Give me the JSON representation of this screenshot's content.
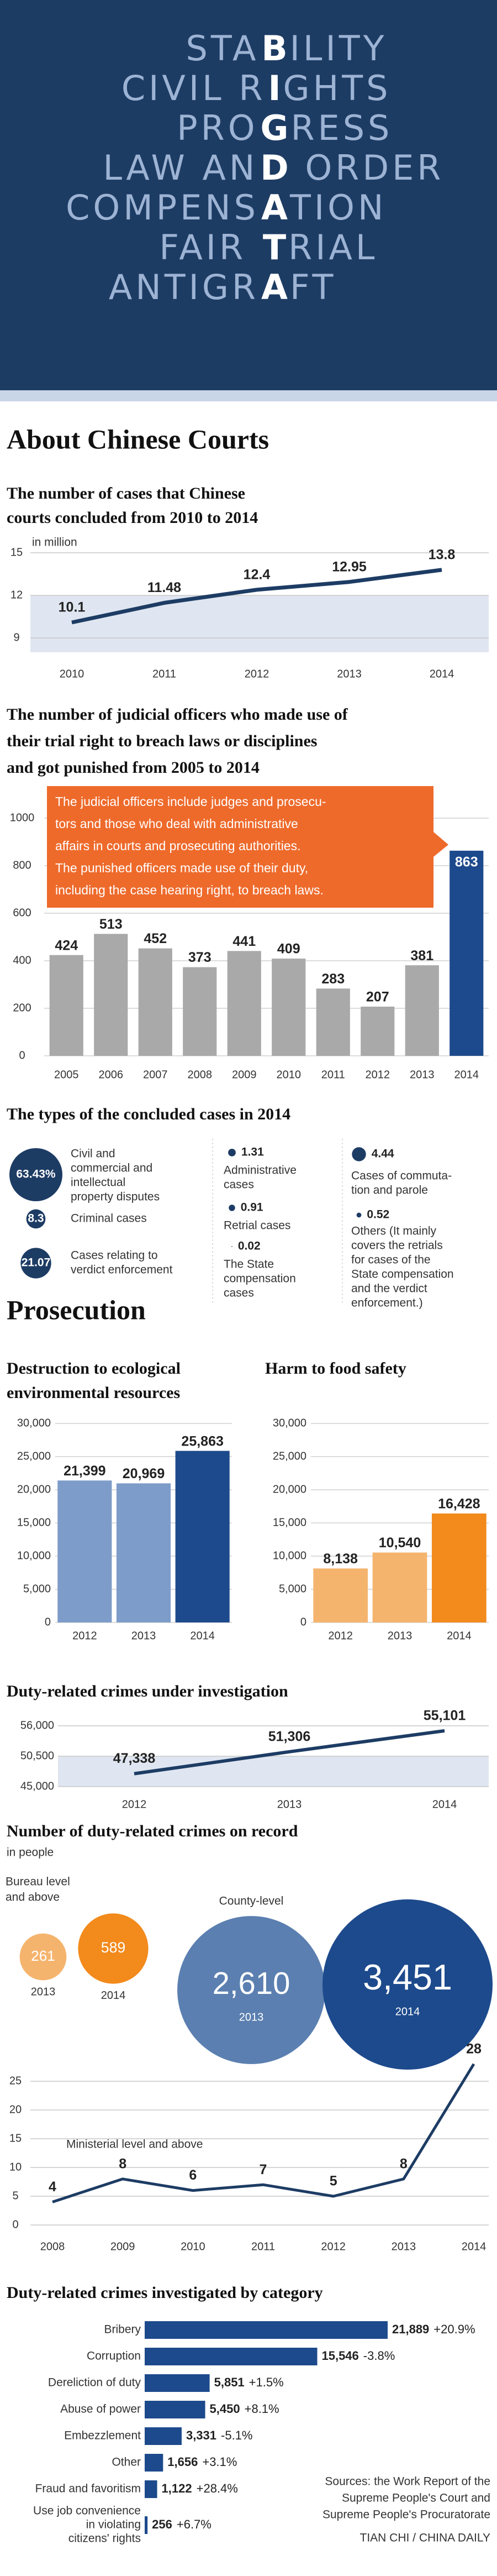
{
  "banner": {
    "lines": [
      {
        "before": "STA",
        "key": "B",
        "after": "ILITY"
      },
      {
        "before": "CIVIL R",
        "key": "I",
        "after": "GHTS"
      },
      {
        "before": "PRO",
        "key": "G",
        "after": "RESS"
      },
      {
        "before": "LAW AN",
        "key": "D",
        "after": " ORDER"
      },
      {
        "before": "COMPENS",
        "key": "A",
        "after": "TION"
      },
      {
        "before": "FAIR ",
        "key": "T",
        "after": "RIAL"
      },
      {
        "before": "ANTIGR",
        "key": "A",
        "after": "FT"
      }
    ]
  },
  "sections": [
    "About Chinese Courts",
    "Prosecution"
  ],
  "chart_data": [
    {
      "type": "line",
      "title": [
        "The number of cases that Chinese",
        "courts concluded from 2010 to 2014"
      ],
      "subtitle": "in million",
      "categories": [
        "2010",
        "2011",
        "2012",
        "2013",
        "2014"
      ],
      "values": [
        10.1,
        11.48,
        12.4,
        12.95,
        13.8
      ],
      "color": "#1d3c64",
      "ylim": [
        8,
        15
      ],
      "yticks": [
        9,
        12,
        15
      ],
      "grid": true
    },
    {
      "type": "bar",
      "title": [
        "The number of judicial officers who made use of",
        "their trial right to breach laws or disciplines",
        "and got punished from 2005 to 2014"
      ],
      "categories": [
        "2005",
        "2006",
        "2007",
        "2008",
        "2009",
        "2010",
        "2011",
        "2012",
        "2013",
        "2014"
      ],
      "values": [
        424,
        513,
        452,
        373,
        441,
        409,
        283,
        207,
        381,
        863
      ],
      "colors": [
        "#a9a9a9",
        "#a9a9a9",
        "#a9a9a9",
        "#a9a9a9",
        "#a9a9a9",
        "#a9a9a9",
        "#a9a9a9",
        "#a9a9a9",
        "#a9a9a9",
        "#1d4a8c"
      ],
      "ylim": [
        0,
        1000
      ],
      "yticks": [
        0,
        200,
        400,
        600,
        800,
        1000
      ],
      "grid": true,
      "annotation": [
        "The judicial officers include judges and prosecu-",
        "tors and those who deal with administrative",
        "affairs in courts and prosecuting authorities.",
        "The punished officers made use of their duty,",
        "including the case hearing right, to breach laws."
      ]
    },
    {
      "type": "bubble",
      "title": [
        "The types of the concluded cases in 2014"
      ],
      "color": "#1d3c64",
      "items": [
        {
          "value": 63.43,
          "value_label": "63.43%",
          "label": [
            "Civil and",
            "commercial and",
            "intellectual",
            "property disputes"
          ]
        },
        {
          "value": 8.3,
          "label": [
            "Criminal cases"
          ]
        },
        {
          "value": 21.07,
          "label": [
            "Cases relating to",
            "verdict enforcement"
          ]
        },
        {
          "value": 1.31,
          "label": [
            "Administrative",
            "cases"
          ]
        },
        {
          "value": 0.91,
          "label": [
            "Retrial cases"
          ]
        },
        {
          "value": 0.02,
          "label": [
            "The State",
            "compensation",
            "cases"
          ]
        },
        {
          "value": 4.44,
          "label": [
            "Cases of commuta-",
            "tion and parole"
          ]
        },
        {
          "value": 0.52,
          "label": [
            "Others (It mainly",
            "covers the retrials",
            "for cases of the",
            "State compensation",
            "and the verdict",
            "enforcement.)"
          ]
        }
      ]
    },
    {
      "type": "bar",
      "title": [
        "Destruction to ecological",
        "environmental resources"
      ],
      "categories": [
        "2012",
        "2013",
        "2014"
      ],
      "values": [
        21399,
        20969,
        25863
      ],
      "value_labels": [
        "21,399",
        "20,969",
        "25,863"
      ],
      "colors": [
        "#7e9cc9",
        "#7e9cc9",
        "#1d4a8c"
      ],
      "ylim": [
        0,
        30000
      ],
      "yticks": [
        0,
        {
          "value": 5000,
          "label": "5,000"
        },
        {
          "value": 10000,
          "label": "10,000"
        },
        {
          "value": 15000,
          "label": "15,000"
        },
        {
          "value": 20000,
          "label": "20,000"
        },
        {
          "value": 25000,
          "label": "25,000"
        },
        {
          "value": 30000,
          "label": "30,000"
        }
      ],
      "grid": true
    },
    {
      "type": "bar",
      "title": [
        "Harm to food safety"
      ],
      "categories": [
        "2012",
        "2013",
        "2014"
      ],
      "values": [
        8138,
        10540,
        16428
      ],
      "value_labels": [
        "8,138",
        "10,540",
        "16,428"
      ],
      "colors": [
        "#f5b46e",
        "#f5b46e",
        "#f28a1c"
      ],
      "ylim": [
        0,
        30000
      ],
      "yticks": [
        0,
        {
          "value": 5000,
          "label": "5,000"
        },
        {
          "value": 10000,
          "label": "10,000"
        },
        {
          "value": 15000,
          "label": "15,000"
        },
        {
          "value": 20000,
          "label": "20,000"
        },
        {
          "value": 25000,
          "label": "25,000"
        },
        {
          "value": 30000,
          "label": "30,000"
        }
      ],
      "grid": true
    },
    {
      "type": "line",
      "title": [
        "Duty-related crimes under investigation"
      ],
      "categories": [
        "2012",
        "2013",
        "2014"
      ],
      "values": [
        47338,
        51306,
        55101
      ],
      "value_labels": [
        "47,338",
        "51,306",
        "55,101"
      ],
      "color": "#1d3c64",
      "ylim": [
        45000,
        56000
      ],
      "yticks": [
        {
          "value": 45000,
          "label": "45,000"
        },
        {
          "value": 50500,
          "label": "50,500"
        },
        {
          "value": 56000,
          "label": "56,000"
        }
      ],
      "grid": true
    },
    {
      "type": "bubble",
      "title": [
        "Number of duty-related crimes on record"
      ],
      "subtitle": "in people",
      "groups": [
        {
          "name": [
            "Bureau level",
            "and above"
          ],
          "categories": [
            "2013",
            "2014"
          ],
          "values": [
            261,
            589
          ],
          "colors": [
            "#f5b46e",
            "#f28a1c"
          ]
        },
        {
          "name": [
            "County-level"
          ],
          "categories": [
            "2013",
            "2014"
          ],
          "values": [
            2610,
            3451
          ],
          "value_labels": [
            "2,610",
            "3,451"
          ],
          "colors": [
            "#5b7fb0",
            "#1d4a8c"
          ]
        }
      ]
    },
    {
      "type": "line",
      "label": "Ministerial level and above",
      "categories": [
        "2008",
        "2009",
        "2010",
        "2011",
        "2012",
        "2013",
        "2014"
      ],
      "values": [
        4,
        8,
        6,
        7,
        5,
        8,
        28
      ],
      "color": "#1d3c64",
      "ylim": [
        0,
        30
      ],
      "yticks": [
        0,
        5,
        10,
        15,
        20,
        25
      ],
      "grid": true
    },
    {
      "type": "hbar",
      "title": [
        "Duty-related crimes investigated by category"
      ],
      "categories": [
        [
          "Bribery"
        ],
        [
          "Corruption"
        ],
        [
          "Dereliction of duty"
        ],
        [
          "Abuse of power"
        ],
        [
          "Embezzlement"
        ],
        [
          "Other"
        ],
        [
          "Fraud and favoritism"
        ],
        [
          "Use job convenience",
          "in violating",
          "citizens' rights"
        ]
      ],
      "values": [
        21889,
        15546,
        5851,
        5450,
        3331,
        1656,
        1122,
        256
      ],
      "value_labels": [
        "21,889",
        "15,546",
        "5,851",
        "5,450",
        "3,331",
        "1,656",
        "1,122",
        "256"
      ],
      "changes": [
        "+20.9%",
        "-3.8%",
        "+1.5%",
        "+8.1%",
        "-5.1%",
        "+3.1%",
        "+28.4%",
        "+6.7%"
      ],
      "color": "#1d4a8c"
    }
  ],
  "sources": {
    "lines": [
      "Sources: the Work Report of the",
      "Supreme People's Court and",
      "Supreme People's Procuratorate"
    ],
    "credit": "TIAN CHI / CHINA DAILY"
  }
}
